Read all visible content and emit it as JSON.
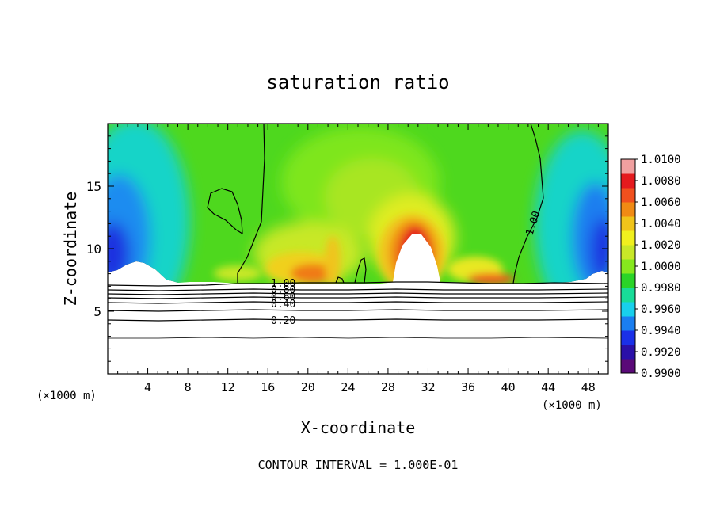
{
  "chart_data": {
    "type": "heatmap",
    "title": "saturation ratio",
    "xlabel": "X-coordinate",
    "ylabel": "Z-coordinate",
    "x_unit": "(×1000 m)",
    "z_unit": "(×1000 m)",
    "xlim": [
      0,
      50
    ],
    "ylim": [
      0,
      20
    ],
    "x_ticks": [
      4,
      8,
      12,
      16,
      20,
      24,
      28,
      32,
      36,
      40,
      44,
      48
    ],
    "y_ticks": [
      5,
      10,
      15
    ],
    "colorbar": {
      "min": 0.99,
      "max": 1.01,
      "ticks": [
        "1.0100",
        "1.0080",
        "1.0060",
        "1.0040",
        "1.0020",
        "1.0000",
        "0.9980",
        "0.9960",
        "0.9940",
        "0.9920",
        "0.9900"
      ],
      "colors": [
        "#5a0a78",
        "#2a10a8",
        "#1a30e8",
        "#1a7ef0",
        "#18d0ec",
        "#18dc98",
        "#2ad428",
        "#86e81e",
        "#c8e828",
        "#f0f01e",
        "#f0c41a",
        "#f08a14",
        "#f0501e",
        "#e41a1e",
        "#f0a0a0"
      ]
    },
    "contour_labels": [
      "1.00",
      "0.80",
      "0.60",
      "0.40",
      "0.20",
      "1.00"
    ],
    "contour_levels_below": [
      0.2,
      0.4,
      0.6,
      0.8,
      1.0
    ],
    "footer": "CONTOUR INTERVAL = 1.000E-01"
  }
}
